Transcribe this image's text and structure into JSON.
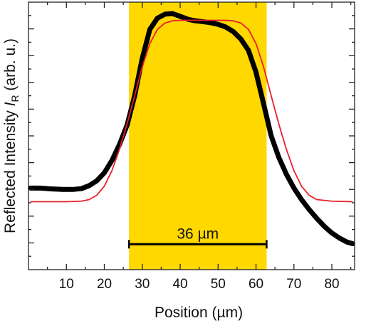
{
  "chart_data": {
    "type": "scatter",
    "xlabel": "Position (µm)",
    "ylabel_main": "Reflected Intensity ",
    "ylabel_symbol": "I",
    "ylabel_sub": "R",
    "ylabel_unit": " (arb. u.)",
    "xlim": [
      0,
      86
    ],
    "ylim": [
      0,
      1
    ],
    "x_ticks": [
      10,
      20,
      30,
      40,
      50,
      60,
      70,
      80
    ],
    "x_minor_step": 5,
    "y_tick_labels_shown": false,
    "grid": false,
    "highlight_region": {
      "x": [
        26.5,
        62.8
      ],
      "color": "#FFD800"
    },
    "scale_bar": {
      "x": [
        26.5,
        62.8
      ],
      "y": 0.095,
      "label": "36 µm"
    },
    "series": [
      {
        "style": "points",
        "color": "#000000",
        "x": [
          0.5,
          3,
          6,
          9,
          12,
          14,
          16,
          18,
          20,
          22,
          24,
          26,
          28,
          30,
          32,
          34,
          36,
          38,
          40,
          42,
          44,
          46,
          48,
          50,
          52,
          54,
          56,
          58,
          60,
          62,
          64,
          66,
          68,
          70,
          72,
          74,
          76,
          78,
          80,
          82,
          84,
          85.5
        ],
        "y": [
          0.305,
          0.305,
          0.302,
          0.3,
          0.3,
          0.303,
          0.314,
          0.332,
          0.362,
          0.408,
          0.468,
          0.54,
          0.65,
          0.79,
          0.898,
          0.94,
          0.955,
          0.957,
          0.947,
          0.936,
          0.93,
          0.927,
          0.923,
          0.917,
          0.907,
          0.89,
          0.862,
          0.82,
          0.738,
          0.62,
          0.5,
          0.42,
          0.357,
          0.305,
          0.262,
          0.225,
          0.192,
          0.162,
          0.137,
          0.118,
          0.103,
          0.097
        ]
      },
      {
        "style": "line",
        "color": "#E8202A",
        "x": [
          0.5,
          10,
          14,
          16,
          18,
          20,
          22,
          24,
          26,
          28,
          30,
          32,
          34,
          36,
          38,
          40,
          42,
          44,
          46,
          48,
          50,
          52,
          54,
          56,
          58,
          60,
          62,
          64,
          66,
          68,
          70,
          72,
          74,
          76,
          80,
          85.5
        ],
        "y": [
          0.254,
          0.254,
          0.256,
          0.262,
          0.278,
          0.312,
          0.37,
          0.45,
          0.545,
          0.65,
          0.758,
          0.845,
          0.898,
          0.922,
          0.93,
          0.932,
          0.932,
          0.932,
          0.932,
          0.932,
          0.932,
          0.932,
          0.93,
          0.922,
          0.898,
          0.845,
          0.758,
          0.65,
          0.545,
          0.45,
          0.37,
          0.312,
          0.278,
          0.262,
          0.256,
          0.254
        ]
      }
    ]
  }
}
